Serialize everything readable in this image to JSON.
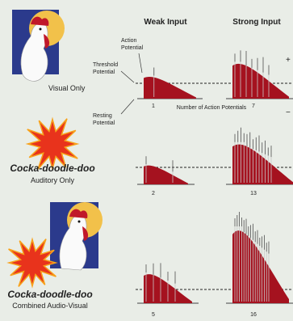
{
  "columns": {
    "weak": "Weak Input",
    "strong": "Strong Input"
  },
  "labels": {
    "action_potential": [
      "Action",
      "Potential"
    ],
    "threshold_potential": [
      "Threshold",
      "Potential"
    ],
    "resting_potential": [
      "Resting",
      "Potential"
    ],
    "count_axis": "Number of Action Potentials"
  },
  "signs": {
    "plus": "+",
    "minus": "−"
  },
  "rows": [
    {
      "label": "Visual Only",
      "weak_count": "1",
      "strong_count": "7"
    },
    {
      "sound": "Cocka-doodle-doo",
      "label": "Auditory Only",
      "weak_count": "2",
      "strong_count": "13"
    },
    {
      "sound": "Cocka-doodle-doo",
      "label": "Combined Audio-Visual",
      "weak_count": "5",
      "strong_count": "16"
    }
  ]
}
